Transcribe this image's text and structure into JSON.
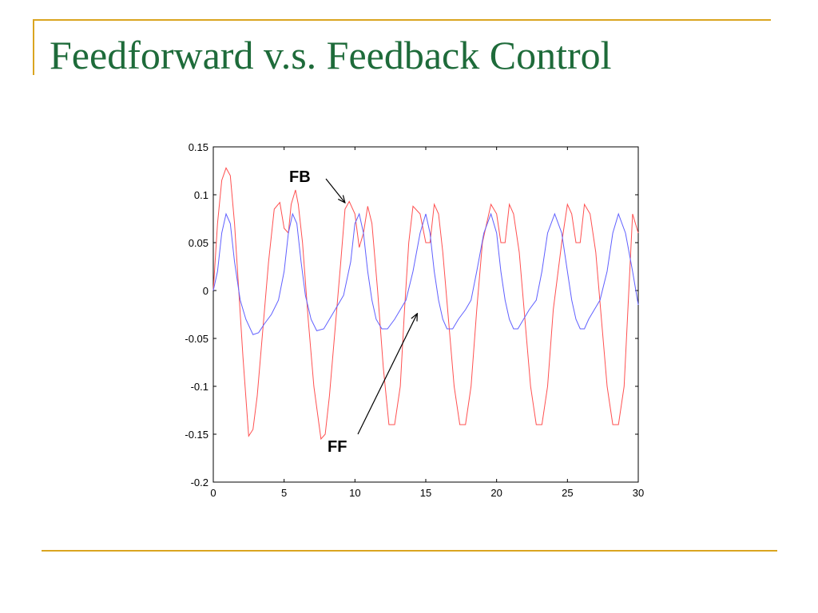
{
  "slide": {
    "title": "Feedforward v.s. Feedback Control",
    "accent_color": "#DAA520",
    "title_color": "#1E6B3A"
  },
  "chart_data": {
    "type": "line",
    "title": "",
    "xlabel": "",
    "ylabel": "",
    "xlim": [
      0,
      30
    ],
    "ylim": [
      -0.2,
      0.15
    ],
    "xticks": [
      "0",
      "5",
      "10",
      "15",
      "20",
      "25",
      "30"
    ],
    "yticks": [
      "0.15",
      "0.1",
      "0.05",
      "0",
      "-0.05",
      "-0.1",
      "-0.15",
      "-0.2"
    ],
    "grid": false,
    "series": [
      {
        "name": "FB",
        "color": "#FF5050",
        "x": [
          0,
          0.3,
          0.6,
          0.9,
          1.2,
          1.5,
          1.8,
          2.1,
          2.5,
          2.8,
          3.1,
          3.5,
          3.9,
          4.3,
          4.7,
          5.0,
          5.3,
          5.5,
          5.8,
          6.0,
          6.3,
          6.7,
          7.1,
          7.6,
          7.9,
          8.2,
          8.6,
          9.0,
          9.3,
          9.6,
          10.0,
          10.3,
          10.6,
          10.9,
          11.2,
          11.6,
          12.0,
          12.4,
          12.8,
          13.2,
          13.5,
          13.8,
          14.1,
          14.6,
          15.0,
          15.3,
          15.6,
          15.9,
          16.2,
          16.6,
          17.0,
          17.4,
          17.8,
          18.2,
          18.6,
          19.0,
          19.6,
          20.0,
          20.3,
          20.6,
          20.9,
          21.2,
          21.6,
          22.0,
          22.4,
          22.8,
          23.2,
          23.6,
          24.0,
          24.6,
          25.0,
          25.3,
          25.6,
          25.9,
          26.2,
          26.6,
          27.0,
          27.4,
          27.8,
          28.2,
          28.6,
          29.0,
          29.6,
          30.0
        ],
        "y": [
          0,
          0.07,
          0.115,
          0.128,
          0.12,
          0.07,
          0,
          -0.07,
          -0.152,
          -0.145,
          -0.11,
          -0.04,
          0.03,
          0.085,
          0.092,
          0.065,
          0.06,
          0.09,
          0.105,
          0.09,
          0.05,
          -0.03,
          -0.1,
          -0.155,
          -0.15,
          -0.11,
          -0.04,
          0.03,
          0.085,
          0.093,
          0.08,
          0.045,
          0.06,
          0.088,
          0.07,
          0,
          -0.08,
          -0.14,
          -0.14,
          -0.1,
          -0.02,
          0.05,
          0.088,
          0.08,
          0.05,
          0.05,
          0.09,
          0.08,
          0.04,
          -0.03,
          -0.1,
          -0.14,
          -0.14,
          -0.1,
          -0.02,
          0.05,
          0.09,
          0.08,
          0.05,
          0.05,
          0.09,
          0.08,
          0.04,
          -0.03,
          -0.1,
          -0.14,
          -0.14,
          -0.1,
          -0.02,
          0.05,
          0.09,
          0.08,
          0.05,
          0.05,
          0.09,
          0.08,
          0.04,
          -0.03,
          -0.1,
          -0.14,
          -0.14,
          -0.1,
          0.08,
          0.06
        ]
      },
      {
        "name": "FF",
        "color": "#6060FF",
        "x": [
          0,
          0.3,
          0.6,
          0.9,
          1.2,
          1.5,
          1.9,
          2.3,
          2.8,
          3.2,
          3.6,
          4.1,
          4.6,
          5.0,
          5.3,
          5.6,
          5.9,
          6.2,
          6.5,
          6.9,
          7.3,
          7.8,
          8.2,
          8.6,
          9.2,
          9.7,
          10.0,
          10.3,
          10.6,
          10.9,
          11.2,
          11.5,
          11.9,
          12.3,
          12.8,
          13.2,
          13.6,
          14.1,
          14.6,
          15.0,
          15.3,
          15.6,
          15.9,
          16.2,
          16.5,
          16.9,
          17.3,
          17.8,
          18.2,
          18.6,
          19.1,
          19.6,
          20.0,
          20.3,
          20.6,
          20.9,
          21.2,
          21.5,
          21.9,
          22.3,
          22.8,
          23.2,
          23.6,
          24.1,
          24.6,
          25.0,
          25.3,
          25.6,
          25.9,
          26.2,
          26.5,
          26.9,
          27.3,
          27.8,
          28.2,
          28.6,
          29.1,
          29.6,
          30.0
        ],
        "y": [
          0,
          0.02,
          0.06,
          0.08,
          0.07,
          0.03,
          -0.01,
          -0.03,
          -0.046,
          -0.044,
          -0.035,
          -0.025,
          -0.01,
          0.02,
          0.06,
          0.08,
          0.07,
          0.03,
          -0.005,
          -0.03,
          -0.042,
          -0.04,
          -0.03,
          -0.02,
          -0.005,
          0.03,
          0.07,
          0.08,
          0.06,
          0.02,
          -0.01,
          -0.03,
          -0.04,
          -0.04,
          -0.03,
          -0.02,
          -0.01,
          0.02,
          0.06,
          0.08,
          0.06,
          0.02,
          -0.01,
          -0.03,
          -0.04,
          -0.04,
          -0.03,
          -0.02,
          -0.01,
          0.02,
          0.06,
          0.08,
          0.06,
          0.02,
          -0.01,
          -0.03,
          -0.04,
          -0.04,
          -0.03,
          -0.02,
          -0.01,
          0.02,
          0.06,
          0.08,
          0.06,
          0.02,
          -0.01,
          -0.03,
          -0.04,
          -0.04,
          -0.03,
          -0.02,
          -0.01,
          0.02,
          0.06,
          0.08,
          0.06,
          0.02,
          -0.015
        ]
      }
    ],
    "annotations": [
      {
        "text": "FB",
        "series": "FB"
      },
      {
        "text": "FF",
        "series": "FF"
      }
    ]
  }
}
